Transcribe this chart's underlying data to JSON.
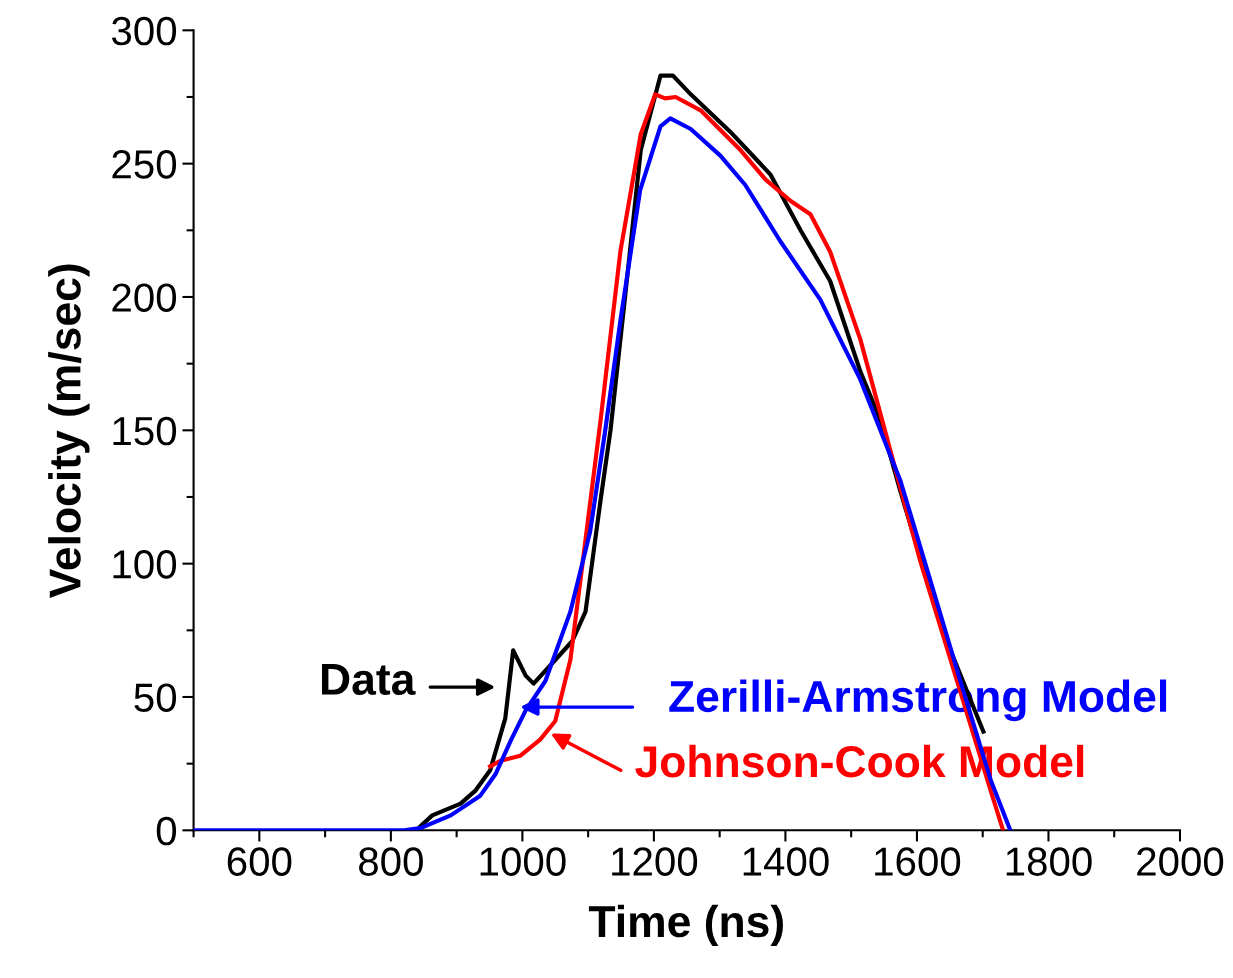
{
  "chart_data": {
    "type": "line",
    "xlabel": "Time (ns)",
    "ylabel": "Velocity (m/sec)",
    "xlim": [
      500,
      2000
    ],
    "xticks": [
      600,
      800,
      1000,
      1200,
      1400,
      1600,
      1800,
      2000
    ],
    "ylim": [
      0,
      300
    ],
    "yticks": [
      0,
      50,
      100,
      150,
      200,
      250,
      300
    ],
    "grid": false,
    "legend": false,
    "marker": "none",
    "line_style": "solid",
    "series": [
      {
        "color": "#000000",
        "x": [
          845,
          863,
          906,
          929,
          951,
          974,
          986,
          1005,
          1017,
          1043,
          1076,
          1096,
          1119,
          1134,
          1157,
          1180,
          1210,
          1229,
          1256,
          1316,
          1377,
          1423,
          1468,
          1514,
          1544,
          1575,
          1620,
          1651,
          1701
        ],
        "values": [
          1.5,
          5.6,
          10,
          15,
          22.5,
          42,
          67.5,
          58,
          55,
          62,
          71,
          82,
          124,
          150,
          202,
          255,
          283,
          283,
          276,
          262,
          246,
          225,
          206,
          172,
          154,
          127,
          90,
          67.5,
          37
        ]
      },
      {
        "color": "#ff0000",
        "x": [
          951,
          966,
          997,
          1027,
          1050,
          1073,
          1096,
          1119,
          1149,
          1180,
          1202,
          1217,
          1233,
          1271,
          1332,
          1370,
          1408,
          1438,
          1468,
          1514,
          1560,
          1605,
          1666,
          1712,
          1731
        ],
        "values": [
          24,
          26,
          28,
          34,
          41,
          64,
          109,
          154,
          217,
          261,
          276,
          274.5,
          275,
          270,
          255,
          244,
          236,
          231,
          217,
          184,
          142,
          101,
          52,
          15,
          0
        ]
      },
      {
        "color": "#0000ff",
        "x": [
          500,
          820,
          845,
          891,
          936,
          959,
          983,
          1005,
          1035,
          1073,
          1103,
          1126,
          1149,
          1179,
          1210,
          1225,
          1256,
          1301,
          1339,
          1392,
          1453,
          1514,
          1575,
          1620,
          1666,
          1712,
          1742
        ],
        "values": [
          0,
          0,
          0.8,
          5.6,
          13,
          21,
          34,
          45,
          56,
          82,
          112,
          150,
          191,
          240,
          264,
          267,
          263,
          253,
          242,
          221,
          199,
          169,
          131,
          94,
          56,
          19,
          0
        ]
      }
    ],
    "annotations": [
      "Data",
      "Johnson-Cook Model",
      "Zerilli-Armstrong Model"
    ]
  }
}
